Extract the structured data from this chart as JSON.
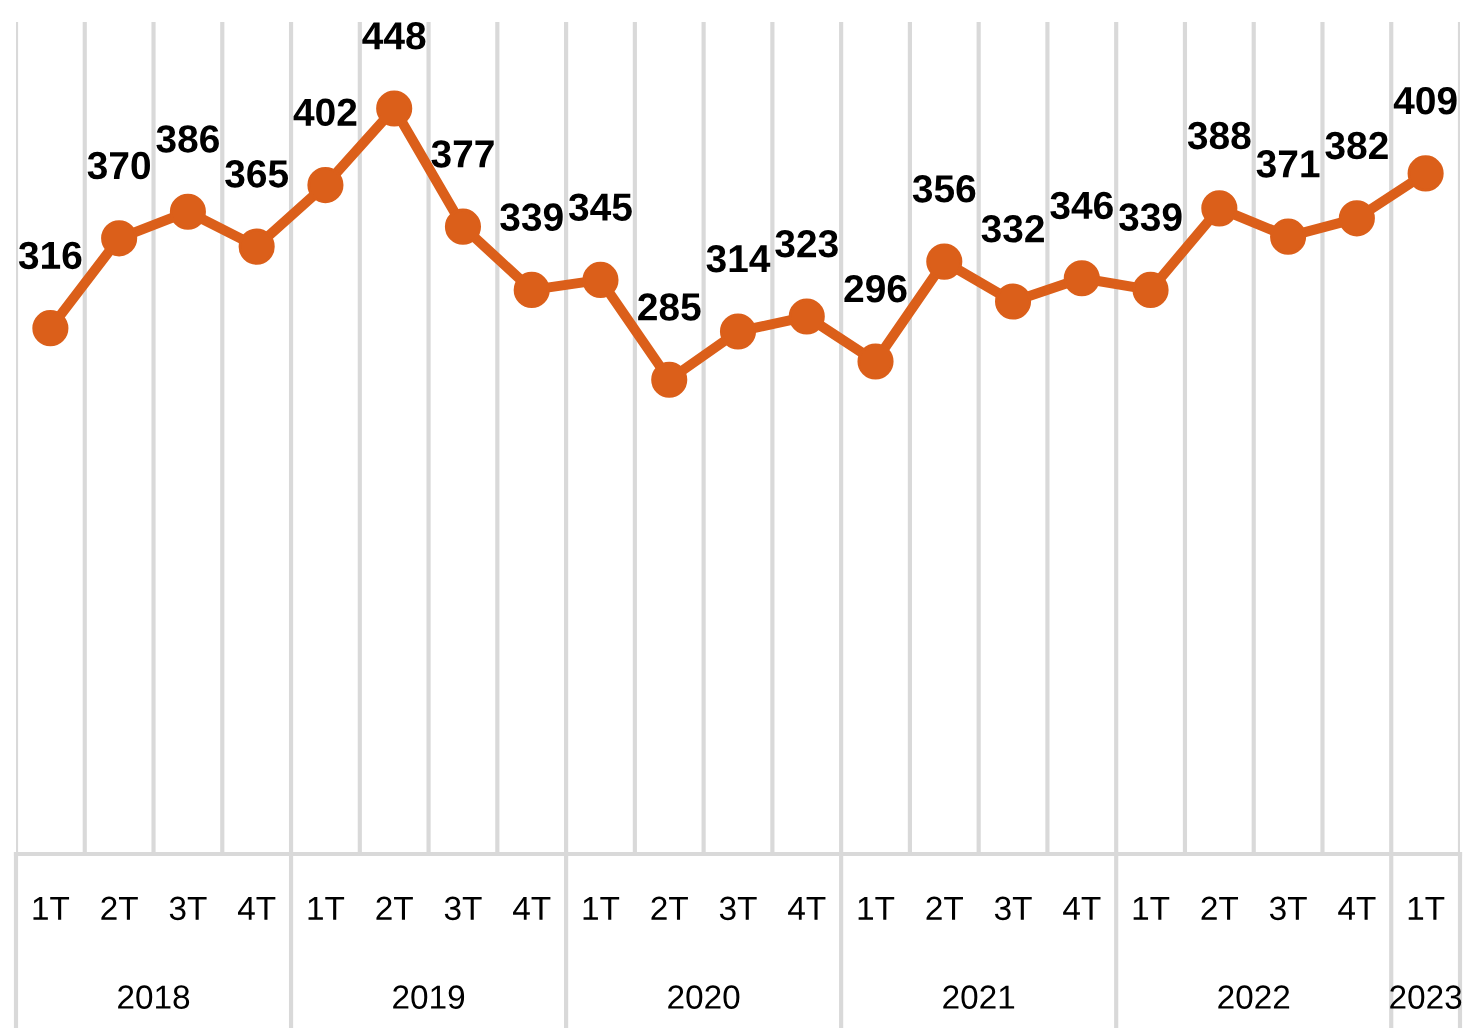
{
  "chart_data": {
    "type": "line",
    "categories": [
      "1T",
      "2T",
      "3T",
      "4T",
      "1T",
      "2T",
      "3T",
      "4T",
      "1T",
      "2T",
      "3T",
      "4T",
      "1T",
      "2T",
      "3T",
      "4T",
      "1T",
      "2T",
      "3T",
      "4T",
      "1T"
    ],
    "values": [
      316,
      370,
      386,
      365,
      402,
      448,
      377,
      339,
      345,
      285,
      314,
      323,
      296,
      356,
      332,
      346,
      339,
      388,
      371,
      382,
      409
    ],
    "color": "#db5f1a",
    "marker": "circle",
    "line_style": "solid",
    "data_labels": true,
    "ylim": [
      0,
      500
    ],
    "grid": "x",
    "tick_labels": "x",
    "annotations": [
      "2018",
      "2019",
      "2020",
      "2021",
      "2022",
      "2023"
    ]
  }
}
